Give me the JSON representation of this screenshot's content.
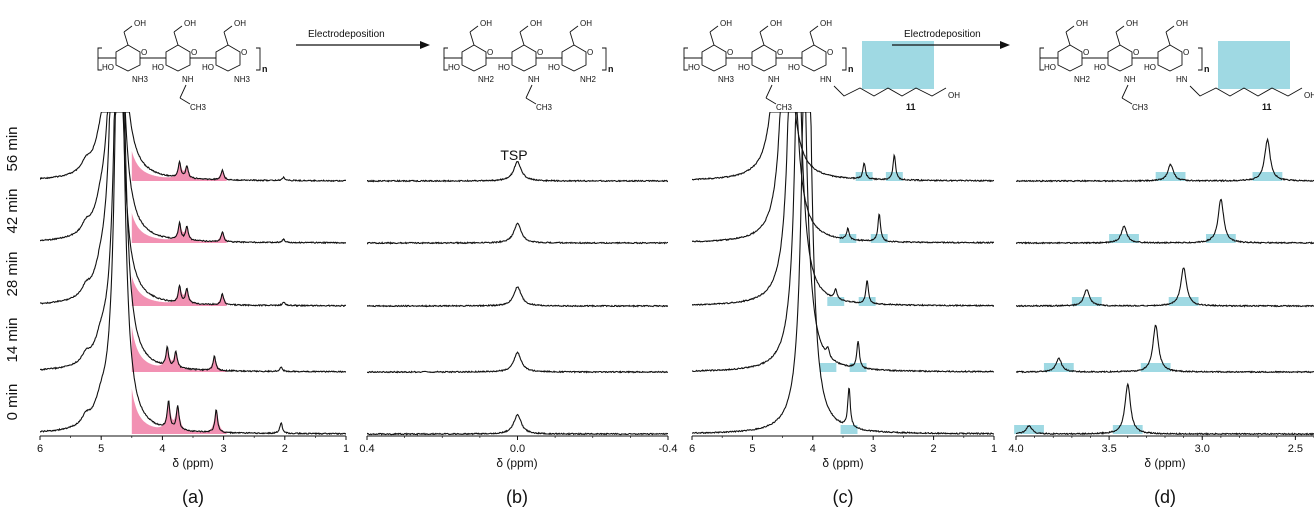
{
  "figure": {
    "time_labels": [
      "56 min",
      "42 min",
      "28 min",
      "14 min",
      "0 min"
    ],
    "reaction_arrow_label": "Electrodeposition",
    "colors": {
      "pink_highlight": "#f07ea6",
      "blue_highlight": "#9fd9e3",
      "trace": "#111111"
    }
  },
  "chart_data": [
    {
      "type": "line",
      "panel": "(a)",
      "xlabel": "δ (ppm)",
      "xlim": [
        6,
        1
      ],
      "x_reversed": true,
      "xticks": [
        "6",
        "5",
        "4",
        "3",
        "2",
        "1"
      ],
      "highlight": {
        "color": "pink",
        "x_range": [
          4.5,
          3.0
        ]
      },
      "series": [
        {
          "time": "56 min",
          "peaks": [
            {
              "x": 4.75,
              "y": 10
            },
            {
              "x": 3.72,
              "y": 0.28
            },
            {
              "x": 3.6,
              "y": 0.22
            },
            {
              "x": 3.02,
              "y": 0.18
            },
            {
              "x": 2.02,
              "y": 0.06
            }
          ]
        },
        {
          "time": "42 min",
          "peaks": [
            {
              "x": 4.75,
              "y": 10
            },
            {
              "x": 3.72,
              "y": 0.3
            },
            {
              "x": 3.6,
              "y": 0.24
            },
            {
              "x": 3.02,
              "y": 0.18
            },
            {
              "x": 2.02,
              "y": 0.06
            }
          ]
        },
        {
          "time": "28 min",
          "peaks": [
            {
              "x": 4.75,
              "y": 10
            },
            {
              "x": 3.72,
              "y": 0.3
            },
            {
              "x": 3.6,
              "y": 0.26
            },
            {
              "x": 3.02,
              "y": 0.2
            },
            {
              "x": 2.02,
              "y": 0.06
            }
          ]
        },
        {
          "time": "14 min",
          "peaks": [
            {
              "x": 4.7,
              "y": 10
            },
            {
              "x": 3.92,
              "y": 0.34
            },
            {
              "x": 3.78,
              "y": 0.3
            },
            {
              "x": 3.15,
              "y": 0.26
            },
            {
              "x": 2.06,
              "y": 0.08
            }
          ]
        },
        {
          "time": "0 min",
          "peaks": [
            {
              "x": 4.7,
              "y": 10
            },
            {
              "x": 3.9,
              "y": 0.5
            },
            {
              "x": 3.75,
              "y": 0.44
            },
            {
              "x": 3.12,
              "y": 0.42
            },
            {
              "x": 2.06,
              "y": 0.2
            }
          ]
        }
      ]
    },
    {
      "type": "line",
      "panel": "(b)",
      "xlabel": "δ (ppm)",
      "xlim": [
        0.4,
        -0.4
      ],
      "x_reversed": true,
      "xticks": [
        "0.4",
        "0.0",
        "-0.4"
      ],
      "annotation": "TSP",
      "series": [
        {
          "time": "56 min",
          "peaks": [
            {
              "x": 0.0,
              "y": 0.35
            }
          ]
        },
        {
          "time": "42 min",
          "peaks": [
            {
              "x": 0.0,
              "y": 0.35
            }
          ]
        },
        {
          "time": "28 min",
          "peaks": [
            {
              "x": 0.0,
              "y": 0.35
            }
          ]
        },
        {
          "time": "14 min",
          "peaks": [
            {
              "x": 0.0,
              "y": 0.35
            }
          ]
        },
        {
          "time": "0 min",
          "peaks": [
            {
              "x": 0.0,
              "y": 0.35
            }
          ]
        }
      ]
    },
    {
      "type": "line",
      "panel": "(c)",
      "xlabel": "δ (ppm)",
      "xlim": [
        6,
        1
      ],
      "x_reversed": true,
      "xticks": [
        "6",
        "5",
        "4",
        "3",
        "2",
        "1"
      ],
      "highlight": {
        "color": "blue"
      },
      "series": [
        {
          "time": "56 min",
          "peaks": [
            {
              "x": 4.5,
              "y": 10
            },
            {
              "x": 3.15,
              "y": 0.3
            },
            {
              "x": 2.65,
              "y": 0.45
            }
          ]
        },
        {
          "time": "42 min",
          "peaks": [
            {
              "x": 4.4,
              "y": 10
            },
            {
              "x": 3.42,
              "y": 0.2
            },
            {
              "x": 2.9,
              "y": 0.5
            }
          ]
        },
        {
          "time": "28 min",
          "peaks": [
            {
              "x": 4.3,
              "y": 10
            },
            {
              "x": 3.62,
              "y": 0.18
            },
            {
              "x": 3.1,
              "y": 0.42
            }
          ]
        },
        {
          "time": "14 min",
          "peaks": [
            {
              "x": 4.2,
              "y": 10
            },
            {
              "x": 3.75,
              "y": 0.16
            },
            {
              "x": 3.25,
              "y": 0.5
            }
          ]
        },
        {
          "time": "0 min",
          "peaks": [
            {
              "x": 4.1,
              "y": 10
            },
            {
              "x": 3.4,
              "y": 0.72
            }
          ]
        }
      ]
    },
    {
      "type": "line",
      "panel": "(d)",
      "xlabel": "δ (ppm)",
      "xlim": [
        4.0,
        2.4
      ],
      "x_reversed": true,
      "xticks": [
        "4.0",
        "3.5",
        "3.0",
        "2.5"
      ],
      "highlight": {
        "color": "blue"
      },
      "series": [
        {
          "time": "56 min",
          "peaks": [
            {
              "x": 3.17,
              "y": 0.3
            },
            {
              "x": 2.65,
              "y": 0.75
            }
          ]
        },
        {
          "time": "42 min",
          "peaks": [
            {
              "x": 3.42,
              "y": 0.3
            },
            {
              "x": 2.9,
              "y": 0.8
            }
          ]
        },
        {
          "time": "28 min",
          "peaks": [
            {
              "x": 3.62,
              "y": 0.3
            },
            {
              "x": 3.1,
              "y": 0.7
            }
          ]
        },
        {
          "time": "14 min",
          "peaks": [
            {
              "x": 3.77,
              "y": 0.25
            },
            {
              "x": 3.25,
              "y": 0.85
            }
          ]
        },
        {
          "time": "0 min",
          "peaks": [
            {
              "x": 3.93,
              "y": 0.15
            },
            {
              "x": 3.4,
              "y": 0.9
            }
          ]
        }
      ]
    }
  ],
  "chem_text": {
    "subscript_n": "n",
    "repeat_11": "11",
    "nh3_plus": "NH3",
    "nh2": "NH2",
    "oh": "OH",
    "ho": "HO",
    "nh": "NH",
    "hn": "HN",
    "o": "O",
    "ch3": "CH3"
  }
}
